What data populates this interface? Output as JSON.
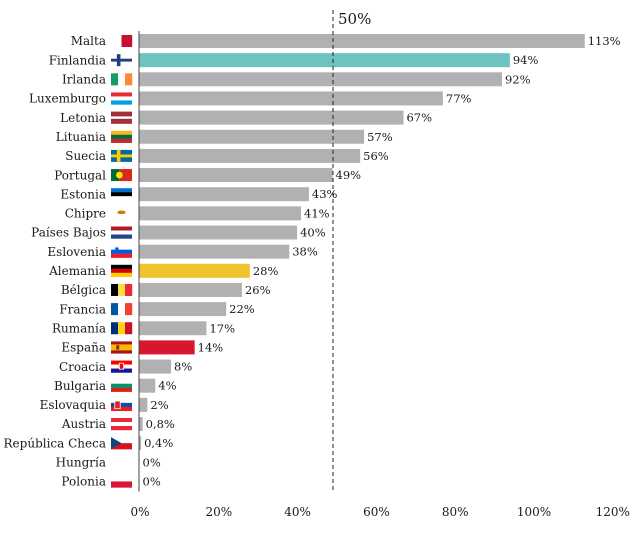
{
  "chart_data": {
    "type": "bar",
    "orientation": "horizontal",
    "categories": [
      "Malta",
      "Finlandia",
      "Irlanda",
      "Luxemburgo",
      "Letonia",
      "Lituania",
      "Suecia",
      "Portugal",
      "Estonia",
      "Chipre",
      "Países Bajos",
      "Eslovenia",
      "Alemania",
      "Bélgica",
      "Francia",
      "Rumanía",
      "España",
      "Croacia",
      "Bulgaria",
      "Eslovaquia",
      "Austria",
      "República Checa",
      "Hungría",
      "Polonia"
    ],
    "values": [
      113,
      94,
      92,
      77,
      67,
      57,
      56,
      49,
      43,
      41,
      40,
      38,
      28,
      26,
      22,
      17,
      14,
      8,
      4,
      2,
      0.8,
      0.4,
      0,
      0
    ],
    "value_labels": [
      "113%",
      "94%",
      "92%",
      "77%",
      "67%",
      "57%",
      "56%",
      "49%",
      "43%",
      "41%",
      "40%",
      "38%",
      "28%",
      "26%",
      "22%",
      "17%",
      "14%",
      "8%",
      "4%",
      "2%",
      "0,8%",
      "0,4%",
      "0%",
      "0%"
    ],
    "bar_colors": {
      "default": "#b1b1b4",
      "Finlandia": "#6cc3c1",
      "Alemania": "#f0c22c",
      "España": "#d8172e"
    },
    "xlim": [
      0,
      120
    ],
    "xticks": [
      0,
      20,
      40,
      60,
      80,
      100,
      120
    ],
    "xtick_labels": [
      "0%",
      "20%",
      "40%",
      "60%",
      "80%",
      "100%",
      "120%"
    ],
    "reference_line": {
      "value": 50,
      "label": "50%",
      "style": "dashed"
    },
    "grid": false,
    "legend": "none",
    "flag_icons": [
      "malta-flag-icon",
      "finland-flag-icon",
      "ireland-flag-icon",
      "luxembourg-flag-icon",
      "latvia-flag-icon",
      "lithuania-flag-icon",
      "sweden-flag-icon",
      "portugal-flag-icon",
      "estonia-flag-icon",
      "cyprus-flag-icon",
      "netherlands-flag-icon",
      "slovenia-flag-icon",
      "germany-flag-icon",
      "belgium-flag-icon",
      "france-flag-icon",
      "romania-flag-icon",
      "spain-flag-icon",
      "croatia-flag-icon",
      "bulgaria-flag-icon",
      "slovakia-flag-icon",
      "austria-flag-icon",
      "czech-flag-icon",
      "hungary-flag-icon",
      "poland-flag-icon"
    ]
  }
}
